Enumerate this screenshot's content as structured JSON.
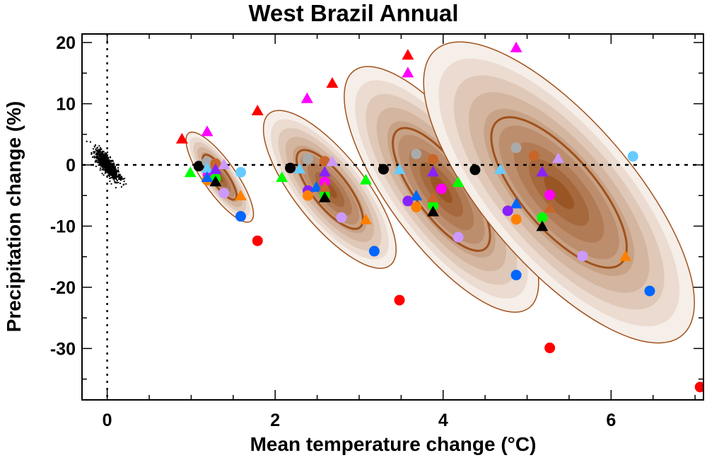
{
  "chart_data": {
    "type": "scatter",
    "title": "West Brazil Annual",
    "xlabel": "Mean temperature change (°C)",
    "ylabel": "Precipitation change (%)",
    "xlim": [
      -0.3,
      7.1
    ],
    "ylim": [
      -38.4,
      21.4
    ],
    "xticks": [
      0,
      2,
      4,
      6
    ],
    "yticks": [
      20,
      10,
      0,
      -10,
      -20,
      -30
    ],
    "reference_lines": {
      "x": 0,
      "y": 0,
      "style": "dotted"
    },
    "colors": {
      "red": "#ff0000",
      "magenta": "#ff00ff",
      "black": "#000000",
      "green": "#00ff00",
      "gray": "#aaaaaa",
      "chocolate": "#c8662a",
      "lightviolet": "#cc99ff",
      "lightblue": "#66ccff",
      "purple": "#8822ff",
      "blue": "#0066ff",
      "orange": "#ff8000",
      "contour_line": "#a0521d",
      "contour_light": "#f6eee8",
      "contour_dark": "#9a5524"
    },
    "ellipses": [
      {
        "center": [
          1.34,
          -2.0
        ],
        "major_end": [
          0.97,
          5.2
        ],
        "minor_ratio": 0.3
      },
      {
        "center": [
          2.65,
          -4.0
        ],
        "major_end": [
          1.93,
          8.4
        ],
        "minor_ratio": 0.36
      },
      {
        "center": [
          3.98,
          -4.0
        ],
        "major_end": [
          2.94,
          15.4
        ],
        "minor_ratio": 0.36
      },
      {
        "center": [
          5.38,
          -4.5
        ],
        "major_end": [
          3.91,
          18.8
        ],
        "minor_ratio": 0.39
      }
    ],
    "control_cloud": {
      "center": [
        0,
        0
      ],
      "x_sd": 0.07,
      "y_sd": 1.2,
      "correlation": -0.8,
      "color": "black"
    },
    "points": [
      {
        "x": 0.89,
        "y": 4.2,
        "c": "red",
        "m": "triangle"
      },
      {
        "x": 1.19,
        "y": 5.4,
        "c": "magenta",
        "m": "triangle"
      },
      {
        "x": 1.09,
        "y": -0.2,
        "c": "black",
        "m": "circle"
      },
      {
        "x": 0.99,
        "y": -1.3,
        "c": "green",
        "m": "triangle"
      },
      {
        "x": 1.19,
        "y": 0.5,
        "c": "gray",
        "m": "circle"
      },
      {
        "x": 1.29,
        "y": 0.2,
        "c": "chocolate",
        "m": "circle"
      },
      {
        "x": 1.39,
        "y": 0.0,
        "c": "lightviolet",
        "m": "triangle"
      },
      {
        "x": 1.2,
        "y": -1.7,
        "c": "magenta",
        "m": "circle"
      },
      {
        "x": 1.19,
        "y": -2.5,
        "c": "orange",
        "m": "circle"
      },
      {
        "x": 1.29,
        "y": -2.2,
        "c": "green",
        "m": "circle"
      },
      {
        "x": 1.19,
        "y": -0.6,
        "c": "lightblue",
        "m": "triangle"
      },
      {
        "x": 1.29,
        "y": -0.8,
        "c": "purple",
        "m": "triangle"
      },
      {
        "x": 1.19,
        "y": -2.1,
        "c": "blue",
        "m": "triangle"
      },
      {
        "x": 1.29,
        "y": -2.8,
        "c": "black",
        "m": "triangle"
      },
      {
        "x": 1.39,
        "y": -4.6,
        "c": "lightviolet",
        "m": "circle"
      },
      {
        "x": 1.59,
        "y": -1.2,
        "c": "lightblue",
        "m": "circle"
      },
      {
        "x": 1.59,
        "y": -5.1,
        "c": "orange",
        "m": "triangle"
      },
      {
        "x": 1.59,
        "y": -8.4,
        "c": "blue",
        "m": "circle"
      },
      {
        "x": 1.79,
        "y": -12.4,
        "c": "red",
        "m": "circle"
      },
      {
        "x": 1.79,
        "y": 8.8,
        "c": "red",
        "m": "triangle"
      },
      {
        "x": 2.18,
        "y": -0.5,
        "c": "black",
        "m": "circle"
      },
      {
        "x": 2.29,
        "y": -0.7,
        "c": "lightblue",
        "m": "triangle"
      },
      {
        "x": 2.08,
        "y": -2.1,
        "c": "green",
        "m": "triangle"
      },
      {
        "x": 2.39,
        "y": 1.0,
        "c": "gray",
        "m": "circle"
      },
      {
        "x": 2.59,
        "y": 0.6,
        "c": "chocolate",
        "m": "circle"
      },
      {
        "x": 2.68,
        "y": 0.5,
        "c": "lightviolet",
        "m": "triangle"
      },
      {
        "x": 2.59,
        "y": -2.8,
        "c": "magenta",
        "m": "circle"
      },
      {
        "x": 2.39,
        "y": -4.2,
        "c": "purple",
        "m": "circle"
      },
      {
        "x": 2.39,
        "y": -5.0,
        "c": "orange",
        "m": "circle"
      },
      {
        "x": 2.59,
        "y": -4.9,
        "c": "green",
        "m": "circle"
      },
      {
        "x": 2.59,
        "y": -1.2,
        "c": "purple",
        "m": "triangle"
      },
      {
        "x": 2.49,
        "y": -3.7,
        "c": "blue",
        "m": "triangle"
      },
      {
        "x": 2.59,
        "y": -3.7,
        "c": "chocolate",
        "m": "triangle"
      },
      {
        "x": 2.59,
        "y": -5.4,
        "c": "black",
        "m": "triangle"
      },
      {
        "x": 2.79,
        "y": -8.6,
        "c": "lightviolet",
        "m": "circle"
      },
      {
        "x": 3.08,
        "y": -9.0,
        "c": "orange",
        "m": "triangle"
      },
      {
        "x": 3.08,
        "y": -2.5,
        "c": "green",
        "m": "triangle"
      },
      {
        "x": 3.18,
        "y": -14.1,
        "c": "blue",
        "m": "circle"
      },
      {
        "x": 2.38,
        "y": 10.8,
        "c": "magenta",
        "m": "triangle"
      },
      {
        "x": 2.68,
        "y": 13.3,
        "c": "red",
        "m": "triangle"
      },
      {
        "x": 3.48,
        "y": -22.1,
        "c": "red",
        "m": "circle"
      },
      {
        "x": 3.29,
        "y": -0.7,
        "c": "black",
        "m": "circle"
      },
      {
        "x": 3.48,
        "y": -0.8,
        "c": "lightblue",
        "m": "triangle"
      },
      {
        "x": 3.68,
        "y": 1.8,
        "c": "gray",
        "m": "circle"
      },
      {
        "x": 3.88,
        "y": 0.9,
        "c": "chocolate",
        "m": "circle"
      },
      {
        "x": 3.98,
        "y": -3.9,
        "c": "magenta",
        "m": "circle"
      },
      {
        "x": 3.58,
        "y": -5.9,
        "c": "purple",
        "m": "circle"
      },
      {
        "x": 3.68,
        "y": -6.9,
        "c": "orange",
        "m": "circle"
      },
      {
        "x": 3.88,
        "y": -6.6,
        "c": "green",
        "m": "circle"
      },
      {
        "x": 3.88,
        "y": -1.2,
        "c": "purple",
        "m": "triangle"
      },
      {
        "x": 4.18,
        "y": -2.9,
        "c": "green",
        "m": "triangle"
      },
      {
        "x": 3.68,
        "y": -5.1,
        "c": "blue",
        "m": "triangle"
      },
      {
        "x": 3.88,
        "y": -5.4,
        "c": "chocolate",
        "m": "triangle"
      },
      {
        "x": 3.88,
        "y": -7.7,
        "c": "black",
        "m": "triangle"
      },
      {
        "x": 4.18,
        "y": -11.8,
        "c": "lightviolet",
        "m": "circle"
      },
      {
        "x": 3.58,
        "y": 17.9,
        "c": "red",
        "m": "triangle"
      },
      {
        "x": 3.58,
        "y": 15.0,
        "c": "magenta",
        "m": "triangle"
      },
      {
        "x": 4.38,
        "y": -0.8,
        "c": "black",
        "m": "circle"
      },
      {
        "x": 4.68,
        "y": -0.8,
        "c": "lightblue",
        "m": "triangle"
      },
      {
        "x": 4.87,
        "y": 2.8,
        "c": "gray",
        "m": "circle"
      },
      {
        "x": 5.08,
        "y": 1.5,
        "c": "chocolate",
        "m": "circle"
      },
      {
        "x": 5.37,
        "y": 1.0,
        "c": "lightviolet",
        "m": "triangle"
      },
      {
        "x": 5.18,
        "y": -1.2,
        "c": "purple",
        "m": "triangle"
      },
      {
        "x": 5.27,
        "y": -4.9,
        "c": "magenta",
        "m": "circle"
      },
      {
        "x": 5.27,
        "y": -7.1,
        "c": "chocolate",
        "m": "triangle"
      },
      {
        "x": 4.87,
        "y": -6.4,
        "c": "blue",
        "m": "triangle"
      },
      {
        "x": 4.77,
        "y": -7.5,
        "c": "purple",
        "m": "circle"
      },
      {
        "x": 4.87,
        "y": -8.9,
        "c": "orange",
        "m": "circle"
      },
      {
        "x": 5.18,
        "y": -8.6,
        "c": "green",
        "m": "circle"
      },
      {
        "x": 5.18,
        "y": -10.1,
        "c": "black",
        "m": "triangle"
      },
      {
        "x": 5.66,
        "y": -14.9,
        "c": "lightviolet",
        "m": "circle"
      },
      {
        "x": 6.17,
        "y": -15.0,
        "c": "orange",
        "m": "triangle"
      },
      {
        "x": 6.26,
        "y": 1.4,
        "c": "lightblue",
        "m": "circle"
      },
      {
        "x": 6.46,
        "y": -20.6,
        "c": "blue",
        "m": "circle"
      },
      {
        "x": 4.87,
        "y": -18.0,
        "c": "blue",
        "m": "circle"
      },
      {
        "x": 4.87,
        "y": 19.1,
        "c": "magenta",
        "m": "triangle"
      },
      {
        "x": 5.27,
        "y": -29.9,
        "c": "red",
        "m": "circle"
      },
      {
        "x": 7.06,
        "y": -36.3,
        "c": "red",
        "m": "circle"
      }
    ]
  }
}
